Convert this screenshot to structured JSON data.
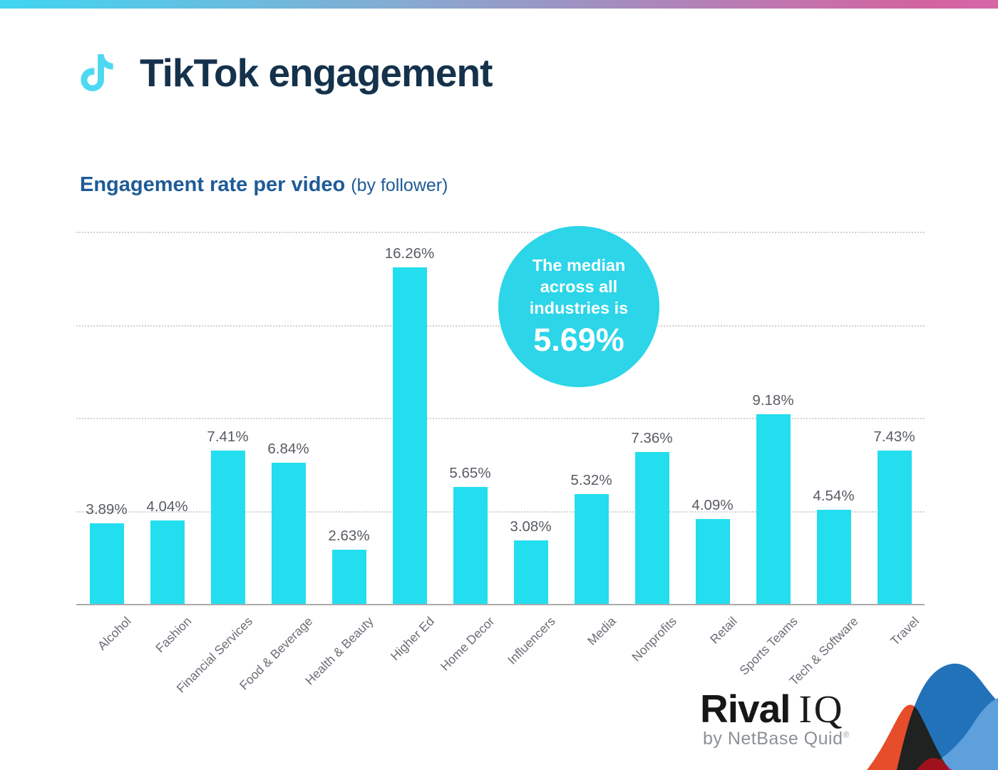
{
  "topbar": {
    "gradient_colors": [
      "#3FD6F1",
      "#85ABD1",
      "#9A96C4",
      "#C671AA",
      "#D765A6"
    ]
  },
  "header": {
    "title": "TikTok engagement",
    "icon": "tiktok-note-icon",
    "icon_color": "#4ED9F2",
    "title_color": "#15324C"
  },
  "subtitle": {
    "main": "Engagement rate per video",
    "note": "(by follower)",
    "color": "#1E5B97"
  },
  "chart_data": {
    "type": "bar",
    "title": "Engagement rate per video (by follower)",
    "categories": [
      "Alcohol",
      "Fashion",
      "Financial Services",
      "Food & Beverage",
      "Health & Beauty",
      "Higher Ed",
      "Home Decor",
      "Influencers",
      "Media",
      "Nonprofits",
      "Retail",
      "Sports Teams",
      "Tech & Software",
      "Travel"
    ],
    "values": [
      3.89,
      4.04,
      7.41,
      6.84,
      2.63,
      16.26,
      5.65,
      3.08,
      5.32,
      7.36,
      4.09,
      9.18,
      4.54,
      7.43
    ],
    "labels": [
      "3.89%",
      "4.04%",
      "7.41%",
      "6.84%",
      "2.63%",
      "16.26%",
      "5.65%",
      "3.08%",
      "5.32%",
      "7.36%",
      "4.09%",
      "9.18%",
      "4.54%",
      "7.43%"
    ],
    "xlabel": "",
    "ylabel": "",
    "ylim": [
      0,
      18
    ],
    "gridlines": [
      4.5,
      9,
      13.5,
      18
    ],
    "grid_style": "dotted",
    "legend": "none",
    "bar_color": "#23DEEE",
    "value_label_color": "#575C63",
    "axis_label_color": "#6A6E75",
    "annotation": {
      "text": "The median across all industries is",
      "value": "5.69%",
      "bg_color": "#2CD5E8",
      "text_color": "#FFFFFF"
    }
  },
  "footer": {
    "brand": "Rival",
    "brand2": "IQ",
    "byline": "by NetBase Quid",
    "reg": "®",
    "wave_colors": [
      "#E74C2B",
      "#2272B9",
      "#5EA0DC",
      "#B13AA0"
    ]
  }
}
